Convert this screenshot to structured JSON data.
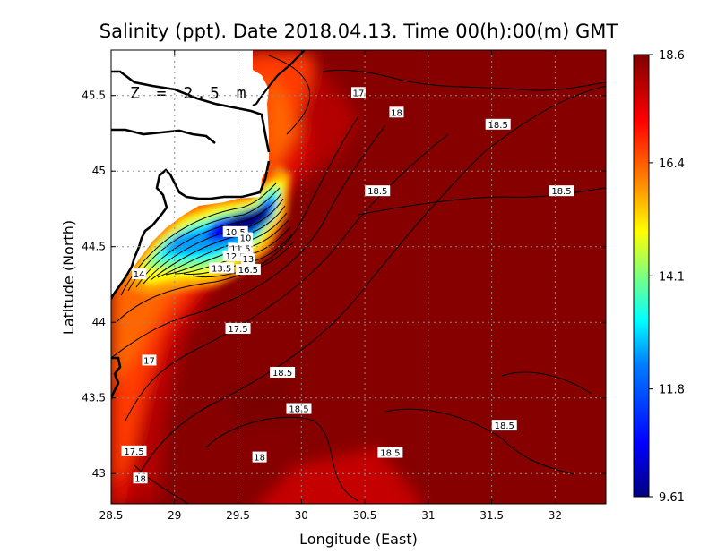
{
  "chart_data": {
    "type": "heatmap",
    "title": "Salinity (ppt). Date 2018.04.13. Time 00(h):00(m) GMT",
    "xlabel": "Longitude (East)",
    "ylabel": "Latitude (North)",
    "annotation": "Z = 2.5 m",
    "xlim": [
      28.5,
      32.4
    ],
    "ylim": [
      42.8,
      45.8
    ],
    "x_ticks": [
      "28.5",
      "29",
      "29.5",
      "30",
      "30.5",
      "31",
      "31.5",
      "32"
    ],
    "y_ticks": [
      "43",
      "43.5",
      "44",
      "44.5",
      "45",
      "45.5"
    ],
    "grid": true,
    "colorbar": {
      "min": 9.61,
      "max": 18.6,
      "ticks": [
        "18.6",
        "16.4",
        "14.1",
        "11.8",
        "9.61"
      ],
      "colors": [
        "#00007f",
        "#0000ff",
        "#007fff",
        "#00ffff",
        "#7fff7f",
        "#ffff00",
        "#ff7f00",
        "#ff0000",
        "#7f0000"
      ]
    },
    "contour_labels": [
      {
        "text": "17",
        "lon": 30.45,
        "lat": 45.52
      },
      {
        "text": "18",
        "lon": 30.75,
        "lat": 45.39
      },
      {
        "text": "18.5",
        "lon": 31.55,
        "lat": 45.31
      },
      {
        "text": "18.5",
        "lon": 30.6,
        "lat": 44.87
      },
      {
        "text": "18.5",
        "lon": 32.05,
        "lat": 44.87
      },
      {
        "text": "10.5",
        "lon": 29.48,
        "lat": 44.6
      },
      {
        "text": "10",
        "lon": 29.56,
        "lat": 44.56
      },
      {
        "text": "11.5",
        "lon": 29.52,
        "lat": 44.49
      },
      {
        "text": "12.5",
        "lon": 29.48,
        "lat": 44.44
      },
      {
        "text": "13",
        "lon": 29.58,
        "lat": 44.42
      },
      {
        "text": "13.5",
        "lon": 29.37,
        "lat": 44.36
      },
      {
        "text": "16.5",
        "lon": 29.58,
        "lat": 44.35
      },
      {
        "text": "14",
        "lon": 28.72,
        "lat": 44.32
      },
      {
        "text": "17.5",
        "lon": 29.5,
        "lat": 43.96
      },
      {
        "text": "17",
        "lon": 28.8,
        "lat": 43.75
      },
      {
        "text": "18.5",
        "lon": 29.85,
        "lat": 43.67
      },
      {
        "text": "18.5",
        "lon": 29.98,
        "lat": 43.43
      },
      {
        "text": "18.5",
        "lon": 31.6,
        "lat": 43.32
      },
      {
        "text": "17.5",
        "lon": 28.68,
        "lat": 43.15
      },
      {
        "text": "18",
        "lon": 29.67,
        "lat": 43.11
      },
      {
        "text": "18.5",
        "lon": 30.7,
        "lat": 43.14
      },
      {
        "text": "18",
        "lon": 28.73,
        "lat": 42.97
      }
    ]
  }
}
